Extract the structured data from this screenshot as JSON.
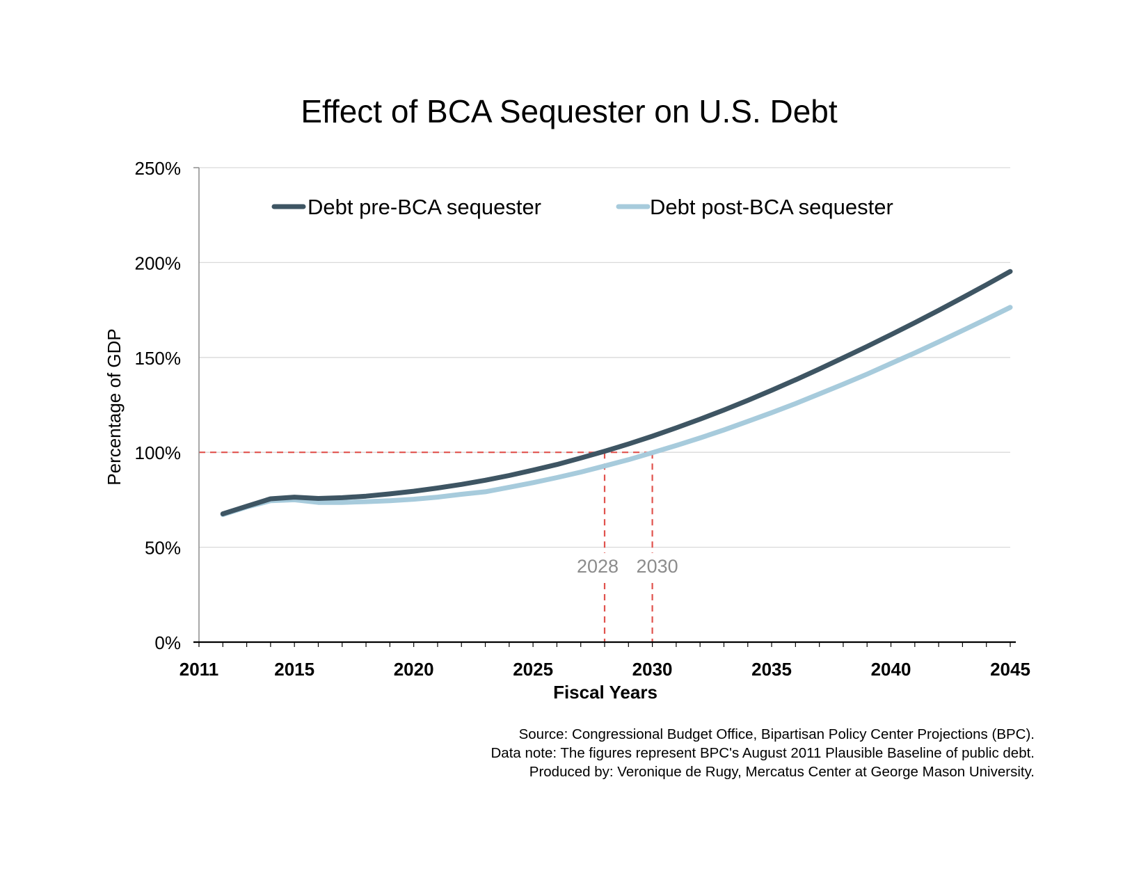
{
  "chart_data": {
    "type": "line",
    "title": "Effect of BCA Sequester on U.S. Debt",
    "xlabel": "Fiscal Years",
    "ylabel": "Percentage of GDP",
    "xlim": [
      2011,
      2045
    ],
    "ylim": [
      0,
      250
    ],
    "x_ticks": [
      "2011",
      "2015",
      "2020",
      "2025",
      "2030",
      "2035",
      "2040",
      "2045"
    ],
    "y_ticks": [
      "0%",
      "50%",
      "100%",
      "150%",
      "200%",
      "250%"
    ],
    "grid": "horizontal",
    "legend_position": "top",
    "series": [
      {
        "name": "Debt pre-BCA sequester",
        "color": "#3e5563",
        "x": [
          2012,
          2013,
          2014,
          2015,
          2016,
          2017,
          2018,
          2019,
          2020,
          2021,
          2022,
          2023,
          2024,
          2025,
          2026,
          2027,
          2028,
          2029,
          2030,
          2031,
          2032,
          2033,
          2034,
          2035,
          2036,
          2037,
          2038,
          2039,
          2040,
          2041,
          2042,
          2043,
          2044,
          2045
        ],
        "values": [
          67.6,
          71.6,
          75.5,
          76.4,
          75.7,
          76.1,
          76.9,
          78.1,
          79.5,
          81.2,
          83.1,
          85.3,
          87.8,
          90.6,
          93.6,
          97.0,
          100.6,
          104.4,
          108.5,
          112.9,
          117.5,
          122.3,
          127.4,
          132.7,
          138.2,
          143.9,
          149.8,
          155.8,
          162.0,
          168.3,
          174.8,
          181.5,
          188.3,
          195.3
        ]
      },
      {
        "name": "Debt post-BCA sequester",
        "color": "#a7cbdc",
        "x": [
          2012,
          2013,
          2014,
          2015,
          2016,
          2017,
          2018,
          2019,
          2020,
          2021,
          2022,
          2023,
          2024,
          2025,
          2026,
          2027,
          2028,
          2029,
          2030,
          2031,
          2032,
          2033,
          2034,
          2035,
          2036,
          2037,
          2038,
          2039,
          2040,
          2041,
          2042,
          2043,
          2044,
          2045
        ],
        "values": [
          67.2,
          71.2,
          74.5,
          75.0,
          73.6,
          73.6,
          74.0,
          74.5,
          75.3,
          76.4,
          77.9,
          79.2,
          81.6,
          84.0,
          86.7,
          89.6,
          92.8,
          96.1,
          99.8,
          103.6,
          107.6,
          111.8,
          116.3,
          120.9,
          125.7,
          130.8,
          135.9,
          141.2,
          146.8,
          152.4,
          158.2,
          164.2,
          170.2,
          176.4
        ]
      }
    ],
    "annotations": {
      "threshold_y": 100,
      "markers": [
        {
          "x": 2028,
          "label": "2028"
        },
        {
          "x": 2030,
          "label": "2030"
        }
      ],
      "color": "#e0524d"
    },
    "notes": [
      "Source: Congressional Budget Office, Bipartisan Policy Center Projections (BPC).",
      "Data note: The figures represent BPC's August 2011 Plausible Baseline of public debt.",
      "Produced by: Veronique de Rugy, Mercatus Center at George Mason University."
    ]
  }
}
